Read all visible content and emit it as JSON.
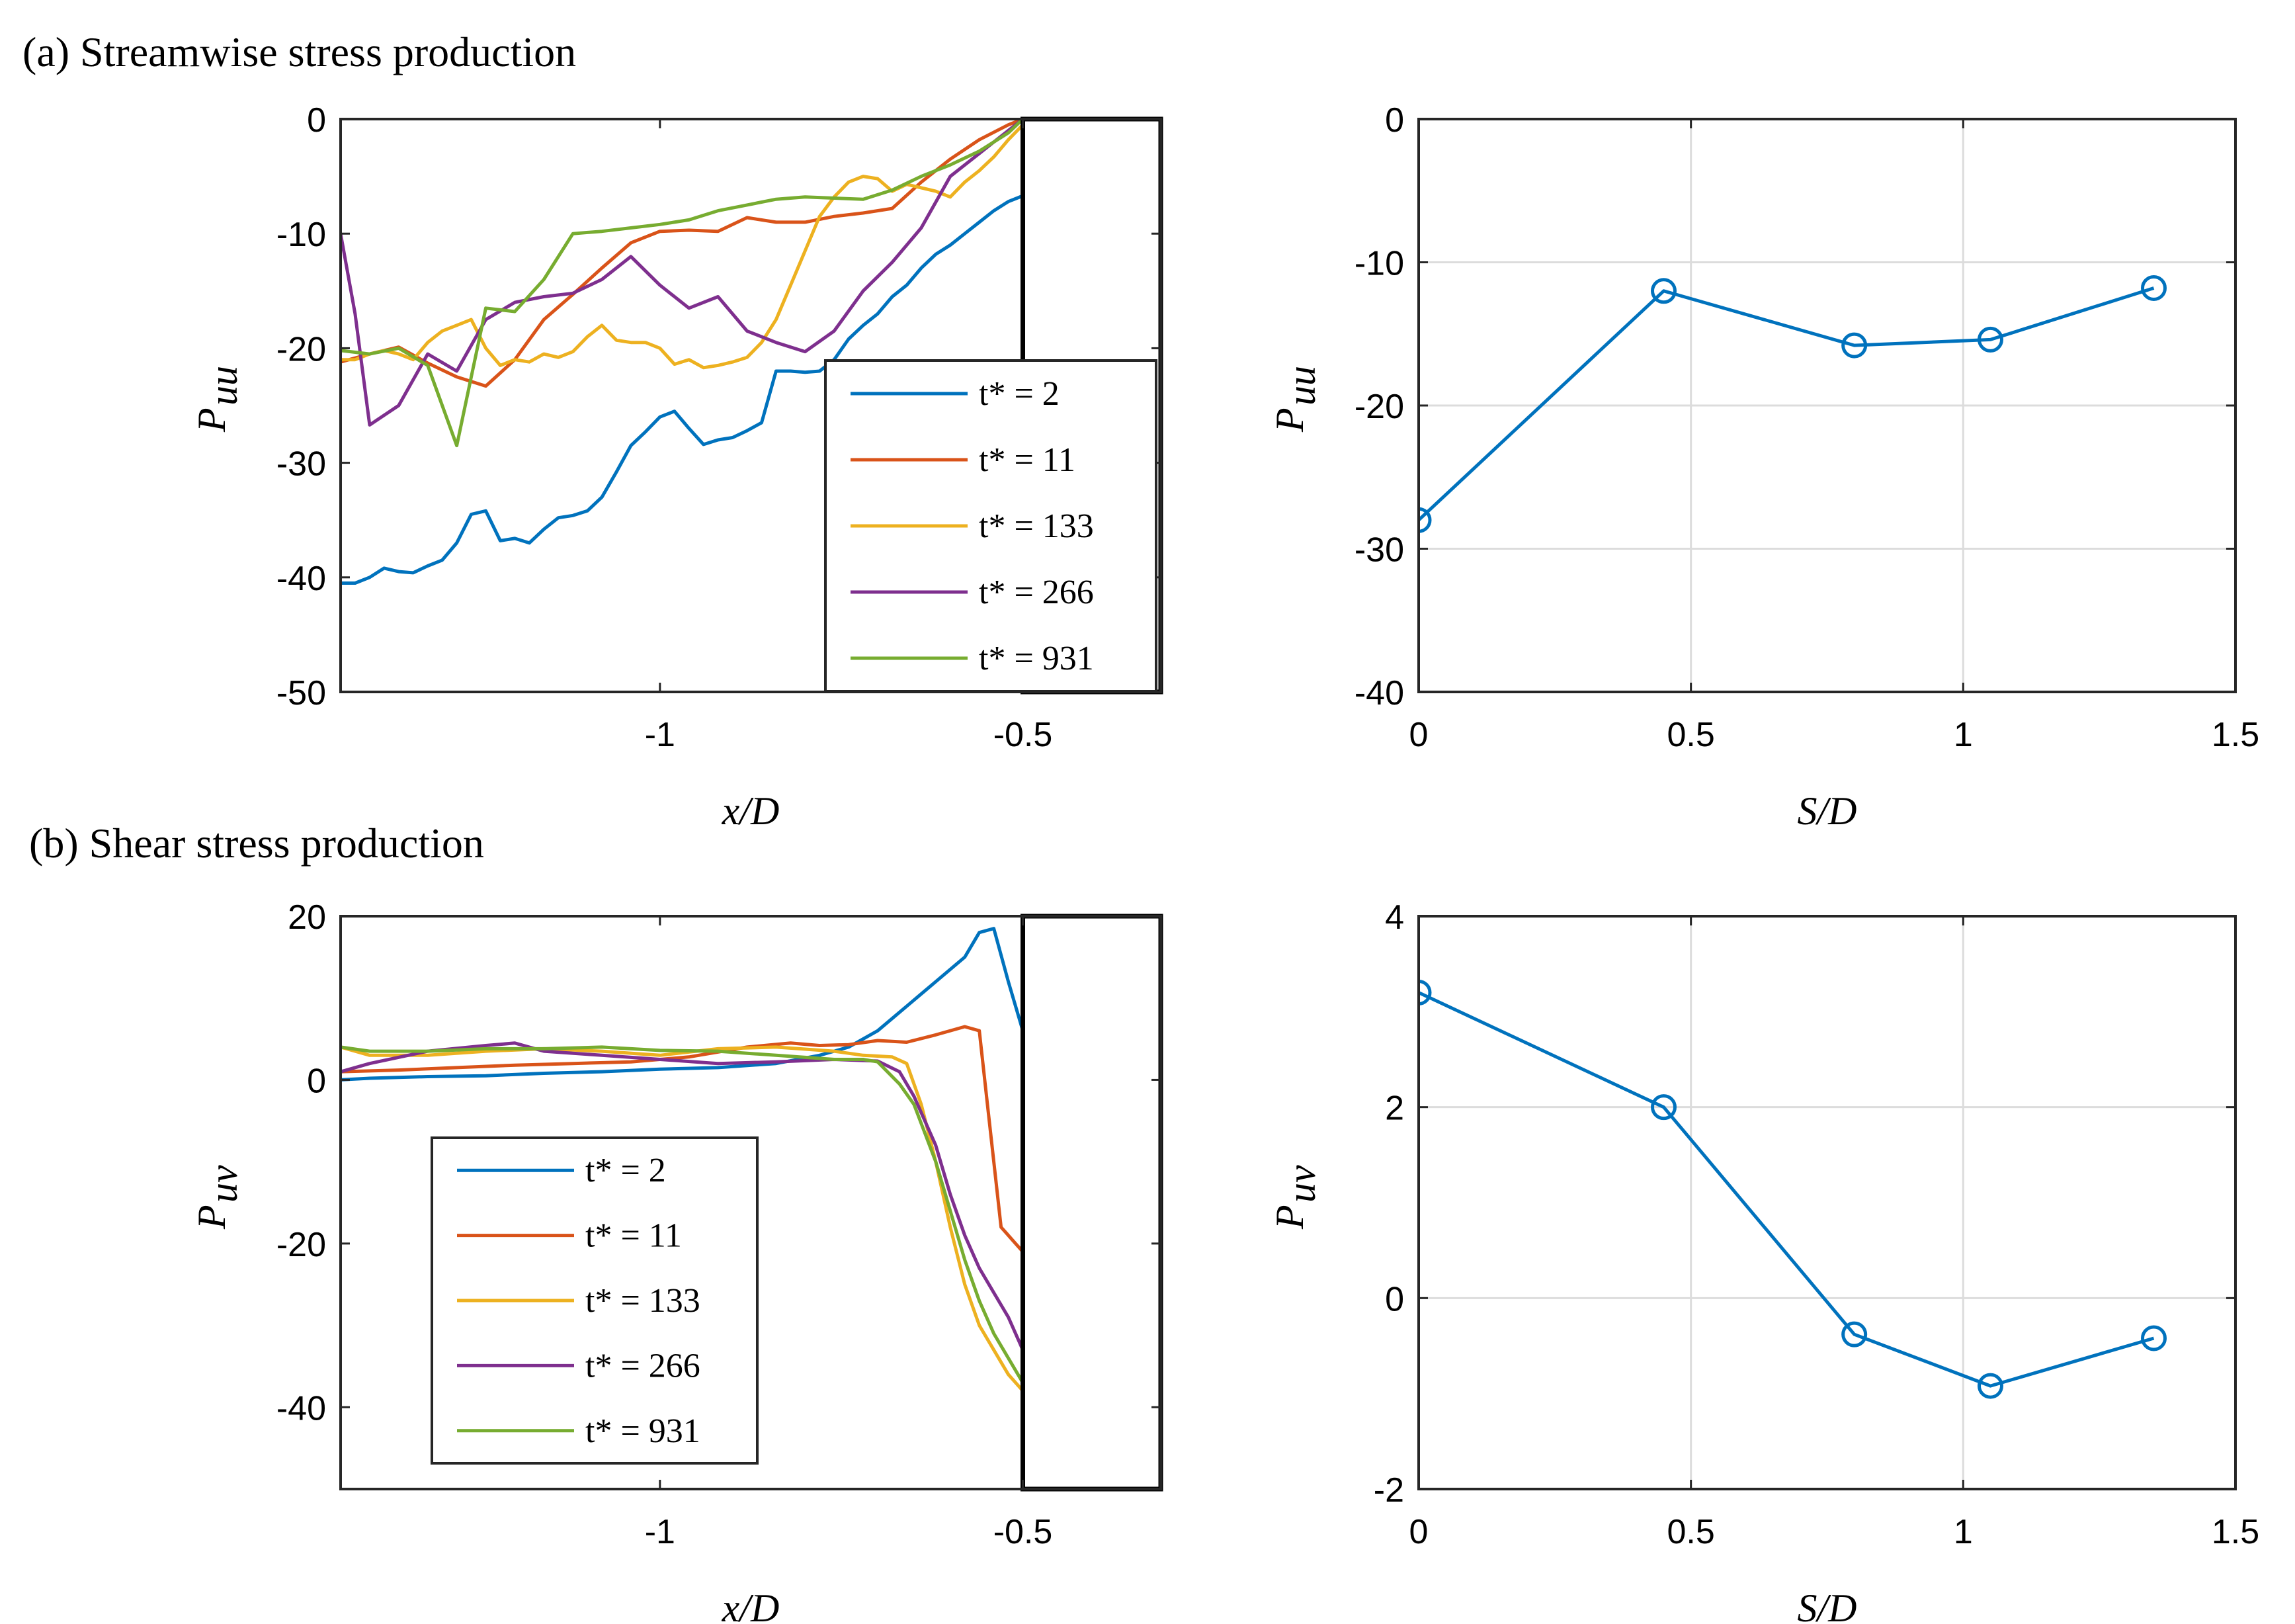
{
  "panel_titles": {
    "a": "(a) Streamwise stress production",
    "b": "(b) Shear stress production"
  },
  "series_colors": [
    "#0072BD",
    "#D95319",
    "#EDB120",
    "#7E2F8E",
    "#77AC30"
  ],
  "chart_data": [
    {
      "id": "a-left",
      "type": "line",
      "xlabel": "x/D",
      "ylabel_main": "P",
      "ylabel_sub": "uu",
      "xlim": [
        -1.44,
        -0.31
      ],
      "ylim": [
        -50,
        0
      ],
      "xticks": [
        -1,
        -0.5
      ],
      "xtick_labels": [
        "-1",
        "-0.5"
      ],
      "yticks": [
        0,
        -10,
        -20,
        -30,
        -40,
        -50
      ],
      "ytick_labels": [
        "0",
        "-10",
        "-20",
        "-30",
        "-40",
        "-50"
      ],
      "grid": false,
      "legend_position": "bottom-right",
      "block_region": [
        -0.5,
        -0.31
      ],
      "series": [
        {
          "name": "t* = 2",
          "x": [
            -1.44,
            -1.42,
            -1.4,
            -1.38,
            -1.36,
            -1.34,
            -1.32,
            -1.3,
            -1.28,
            -1.26,
            -1.24,
            -1.22,
            -1.2,
            -1.18,
            -1.16,
            -1.14,
            -1.12,
            -1.1,
            -1.08,
            -1.06,
            -1.04,
            -1.02,
            -1.0,
            -0.98,
            -0.96,
            -0.94,
            -0.92,
            -0.9,
            -0.88,
            -0.86,
            -0.84,
            -0.82,
            -0.8,
            -0.78,
            -0.76,
            -0.74,
            -0.72,
            -0.7,
            -0.68,
            -0.66,
            -0.64,
            -0.62,
            -0.6,
            -0.58,
            -0.56,
            -0.54,
            -0.52,
            -0.5
          ],
          "y": [
            -40.5,
            -40.5,
            -40,
            -39.2,
            -39.5,
            -39.6,
            -39,
            -38.5,
            -37,
            -34.5,
            -34.2,
            -36.8,
            -36.6,
            -37,
            -35.8,
            -34.8,
            -34.6,
            -34.2,
            -33,
            -30.8,
            -28.5,
            -27.3,
            -26,
            -25.5,
            -27,
            -28.4,
            -28,
            -27.8,
            -27.2,
            -26.5,
            -22,
            -22,
            -22.1,
            -22,
            -21,
            -19.2,
            -18,
            -17,
            -15.5,
            -14.5,
            -13,
            -11.8,
            -11,
            -10,
            -9,
            -8,
            -7.2,
            -6.7
          ]
        },
        {
          "name": "t* = 11",
          "x": [
            -1.44,
            -1.4,
            -1.36,
            -1.32,
            -1.28,
            -1.24,
            -1.2,
            -1.16,
            -1.12,
            -1.08,
            -1.04,
            -1.0,
            -0.96,
            -0.92,
            -0.88,
            -0.84,
            -0.8,
            -0.76,
            -0.72,
            -0.68,
            -0.64,
            -0.6,
            -0.56,
            -0.52,
            -0.5
          ],
          "y": [
            -21.2,
            -20.5,
            -19.9,
            -21.3,
            -22.5,
            -23.3,
            -21,
            -17.5,
            -15.3,
            -13,
            -10.8,
            -9.8,
            -9.7,
            -9.8,
            -8.6,
            -9,
            -9,
            -8.5,
            -8.2,
            -7.8,
            -5.5,
            -3.5,
            -1.8,
            -0.5,
            0
          ]
        },
        {
          "name": "t* = 133",
          "x": [
            -1.44,
            -1.42,
            -1.4,
            -1.38,
            -1.36,
            -1.34,
            -1.32,
            -1.3,
            -1.28,
            -1.26,
            -1.24,
            -1.22,
            -1.2,
            -1.18,
            -1.16,
            -1.14,
            -1.12,
            -1.1,
            -1.08,
            -1.06,
            -1.04,
            -1.02,
            -1.0,
            -0.98,
            -0.96,
            -0.94,
            -0.92,
            -0.9,
            -0.88,
            -0.86,
            -0.84,
            -0.82,
            -0.8,
            -0.78,
            -0.76,
            -0.74,
            -0.72,
            -0.7,
            -0.68,
            -0.66,
            -0.64,
            -0.62,
            -0.6,
            -0.58,
            -0.56,
            -0.54,
            -0.52,
            -0.5
          ],
          "y": [
            -21,
            -21,
            -20.5,
            -20.2,
            -20.5,
            -21,
            -19.5,
            -18.5,
            -18,
            -17.5,
            -20,
            -21.5,
            -21,
            -21.2,
            -20.5,
            -20.8,
            -20.3,
            -19,
            -18,
            -19.3,
            -19.5,
            -19.5,
            -20,
            -21.4,
            -21,
            -21.7,
            -21.5,
            -21.2,
            -20.8,
            -19.5,
            -17.5,
            -14.5,
            -11.5,
            -8.5,
            -6.8,
            -5.5,
            -5,
            -5.2,
            -6.3,
            -5.7,
            -6,
            -6.3,
            -6.8,
            -5.5,
            -4.5,
            -3.3,
            -1.8,
            -0.5
          ]
        },
        {
          "name": "t* = 266",
          "x": [
            -1.44,
            -1.42,
            -1.4,
            -1.36,
            -1.32,
            -1.28,
            -1.24,
            -1.2,
            -1.16,
            -1.12,
            -1.08,
            -1.04,
            -1.0,
            -0.96,
            -0.92,
            -0.88,
            -0.84,
            -0.8,
            -0.76,
            -0.72,
            -0.68,
            -0.64,
            -0.6,
            -0.56,
            -0.52,
            -0.5
          ],
          "y": [
            -10,
            -17,
            -26.7,
            -25,
            -20.5,
            -22,
            -17.5,
            -16,
            -15.5,
            -15.2,
            -14,
            -12,
            -14.5,
            -16.5,
            -15.5,
            -18.5,
            -19.5,
            -20.3,
            -18.5,
            -15,
            -12.5,
            -9.5,
            -5,
            -3,
            -1,
            0
          ]
        },
        {
          "name": "t* = 931",
          "x": [
            -1.44,
            -1.4,
            -1.36,
            -1.32,
            -1.28,
            -1.24,
            -1.2,
            -1.16,
            -1.12,
            -1.08,
            -1.04,
            -1.0,
            -0.96,
            -0.92,
            -0.88,
            -0.84,
            -0.8,
            -0.76,
            -0.72,
            -0.68,
            -0.64,
            -0.6,
            -0.56,
            -0.52,
            -0.5
          ],
          "y": [
            -20.2,
            -20.5,
            -20,
            -21.5,
            -28.5,
            -16.5,
            -16.8,
            -14,
            -10,
            -9.8,
            -9.5,
            -9.2,
            -8.8,
            -8,
            -7.5,
            -7,
            -6.8,
            -6.9,
            -7,
            -6.2,
            -5,
            -4,
            -2.8,
            -1.2,
            0
          ]
        }
      ]
    },
    {
      "id": "a-right",
      "type": "line",
      "xlabel": "S/D",
      "ylabel_main": "P",
      "ylabel_sub": "uu",
      "xlim": [
        0,
        1.5
      ],
      "ylim": [
        -40,
        0
      ],
      "xticks": [
        0,
        0.5,
        1,
        1.5
      ],
      "xtick_labels": [
        "0",
        "0.5",
        "1",
        "1.5"
      ],
      "yticks": [
        0,
        -10,
        -20,
        -30,
        -40
      ],
      "ytick_labels": [
        "0",
        "-10",
        "-20",
        "-30",
        "-40"
      ],
      "grid": true,
      "markers": "circle",
      "series": [
        {
          "name": "P_uu",
          "x": [
            0,
            0.45,
            0.8,
            1.05,
            1.35
          ],
          "y": [
            -28,
            -12,
            -15.8,
            -15.4,
            -11.8
          ]
        }
      ]
    },
    {
      "id": "b-left",
      "type": "line",
      "xlabel": "x/D",
      "ylabel_main": "P",
      "ylabel_sub": "uv",
      "xlim": [
        -1.44,
        -0.31
      ],
      "ylim": [
        -50,
        20
      ],
      "xticks": [
        -1,
        -0.5
      ],
      "xtick_labels": [
        "-1",
        "-0.5"
      ],
      "yticks": [
        20,
        0,
        -20,
        -40
      ],
      "ytick_labels": [
        "20",
        "0",
        "-20",
        "-40"
      ],
      "grid": false,
      "legend_position": "bottom-left",
      "block_region": [
        -0.5,
        -0.31
      ],
      "series": [
        {
          "name": "t* = 2",
          "x": [
            -1.44,
            -1.4,
            -1.32,
            -1.24,
            -1.16,
            -1.08,
            -1.0,
            -0.92,
            -0.84,
            -0.78,
            -0.74,
            -0.7,
            -0.66,
            -0.62,
            -0.58,
            -0.56,
            -0.54,
            -0.52,
            -0.5
          ],
          "y": [
            0,
            0.2,
            0.4,
            0.5,
            0.8,
            1,
            1.3,
            1.5,
            2,
            3,
            4,
            6,
            9,
            12,
            15,
            18,
            18.5,
            12,
            6
          ]
        },
        {
          "name": "t* = 11",
          "x": [
            -1.44,
            -1.36,
            -1.28,
            -1.2,
            -1.12,
            -1.04,
            -0.96,
            -0.88,
            -0.82,
            -0.78,
            -0.74,
            -0.7,
            -0.66,
            -0.62,
            -0.58,
            -0.56,
            -0.55,
            -0.54,
            -0.53,
            -0.52,
            -0.51,
            -0.5
          ],
          "y": [
            1,
            1.2,
            1.5,
            1.8,
            2,
            2.2,
            2.8,
            4,
            4.5,
            4.2,
            4.3,
            4.8,
            4.6,
            5.5,
            6.5,
            6,
            -2,
            -10,
            -18,
            -19,
            -20,
            -21
          ]
        },
        {
          "name": "t* = 133",
          "x": [
            -1.44,
            -1.4,
            -1.32,
            -1.24,
            -1.16,
            -1.08,
            -1.0,
            -0.92,
            -0.84,
            -0.76,
            -0.72,
            -0.68,
            -0.66,
            -0.64,
            -0.62,
            -0.6,
            -0.58,
            -0.56,
            -0.54,
            -0.52,
            -0.5
          ],
          "y": [
            4,
            3,
            3,
            3.5,
            3.8,
            3.5,
            3,
            3.8,
            4,
            3.5,
            3,
            2.8,
            2,
            -3,
            -10,
            -18,
            -25,
            -30,
            -33,
            -36,
            -38
          ]
        },
        {
          "name": "t* = 266",
          "x": [
            -1.44,
            -1.4,
            -1.32,
            -1.24,
            -1.2,
            -1.16,
            -1.08,
            -1.0,
            -0.92,
            -0.84,
            -0.76,
            -0.7,
            -0.67,
            -0.65,
            -0.62,
            -0.6,
            -0.58,
            -0.56,
            -0.54,
            -0.52,
            -0.5
          ],
          "y": [
            1,
            2,
            3.5,
            4.2,
            4.5,
            3.5,
            3,
            2.5,
            2,
            2.2,
            2.5,
            2.3,
            1,
            -2,
            -8,
            -14,
            -19,
            -23,
            -26,
            -29,
            -33
          ]
        },
        {
          "name": "t* = 931",
          "x": [
            -1.44,
            -1.4,
            -1.32,
            -1.24,
            -1.16,
            -1.08,
            -1.0,
            -0.92,
            -0.84,
            -0.76,
            -0.72,
            -0.7,
            -0.67,
            -0.65,
            -0.62,
            -0.6,
            -0.58,
            -0.56,
            -0.54,
            -0.52,
            -0.5
          ],
          "y": [
            4,
            3.5,
            3.5,
            3.8,
            3.8,
            4,
            3.6,
            3.5,
            3,
            2.5,
            2.5,
            2.2,
            -0.5,
            -3,
            -10,
            -16,
            -22,
            -27,
            -31,
            -34,
            -37
          ]
        }
      ]
    },
    {
      "id": "b-right",
      "type": "line",
      "xlabel": "S/D",
      "ylabel_main": "P",
      "ylabel_sub": "uv",
      "xlim": [
        0,
        1.5
      ],
      "ylim": [
        -2,
        4
      ],
      "xticks": [
        0,
        0.5,
        1,
        1.5
      ],
      "xtick_labels": [
        "0",
        "0.5",
        "1",
        "1.5"
      ],
      "yticks": [
        4,
        2,
        0,
        -2
      ],
      "ytick_labels": [
        "4",
        "2",
        "0",
        "-2"
      ],
      "grid": true,
      "markers": "circle",
      "series": [
        {
          "name": "P_uv",
          "x": [
            0,
            0.45,
            0.8,
            1.05,
            1.35
          ],
          "y": [
            3.2,
            2.0,
            -0.38,
            -0.92,
            -0.42
          ]
        }
      ]
    }
  ]
}
